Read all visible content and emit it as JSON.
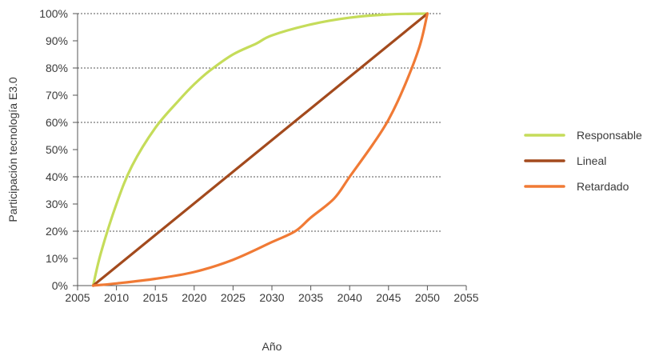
{
  "chart_data": {
    "type": "line",
    "xlabel": "Año",
    "ylabel": "Participación tecnología E3.0",
    "xlim": [
      2005,
      2055
    ],
    "ylim": [
      0,
      100
    ],
    "x_ticks": [
      "2005",
      "2010",
      "2015",
      "2020",
      "2025",
      "2030",
      "2035",
      "2040",
      "2045",
      "2050",
      "2055"
    ],
    "y_ticks": [
      "0%",
      "10%",
      "20%",
      "30%",
      "40%",
      "50%",
      "60%",
      "70%",
      "80%",
      "90%",
      "100%"
    ],
    "y_tick_values": [
      0,
      10,
      20,
      30,
      40,
      50,
      60,
      70,
      80,
      90,
      100
    ],
    "x_tick_values": [
      2005,
      2010,
      2015,
      2020,
      2025,
      2030,
      2035,
      2040,
      2045,
      2050,
      2055
    ],
    "dashed_gridlines_at": [
      20,
      40,
      60,
      80,
      100
    ],
    "legend_position": "right",
    "series": [
      {
        "name": "Responsable",
        "color": "#c5dc5a",
        "points": [
          [
            2007,
            0
          ],
          [
            2008,
            12
          ],
          [
            2010,
            30
          ],
          [
            2012,
            44
          ],
          [
            2015,
            58
          ],
          [
            2018,
            68
          ],
          [
            2020,
            74
          ],
          [
            2022,
            79
          ],
          [
            2025,
            85
          ],
          [
            2028,
            89
          ],
          [
            2030,
            92
          ],
          [
            2035,
            96
          ],
          [
            2040,
            98.5
          ],
          [
            2045,
            99.7
          ],
          [
            2050,
            100
          ]
        ]
      },
      {
        "name": "Lineal",
        "color": "#a34a1d",
        "points": [
          [
            2007,
            0
          ],
          [
            2050,
            100
          ]
        ]
      },
      {
        "name": "Retardado",
        "color": "#f07a35",
        "points": [
          [
            2007,
            0
          ],
          [
            2010,
            0.8
          ],
          [
            2015,
            2.5
          ],
          [
            2020,
            5
          ],
          [
            2025,
            9.5
          ],
          [
            2030,
            16
          ],
          [
            2033,
            20
          ],
          [
            2035,
            25
          ],
          [
            2038,
            32
          ],
          [
            2040,
            40
          ],
          [
            2043,
            52
          ],
          [
            2045,
            61
          ],
          [
            2047,
            73
          ],
          [
            2049,
            88
          ],
          [
            2050,
            100
          ]
        ]
      }
    ]
  }
}
